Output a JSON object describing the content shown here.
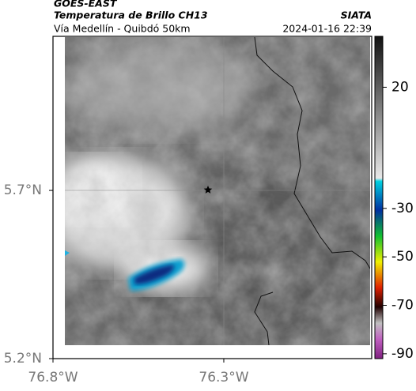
{
  "header": {
    "title": "GOES-EAST",
    "subtitle": "Temperatura de Brillo CH13",
    "route": "Vía Medellín - Quibdó 50km",
    "source": "SIATA",
    "timestamp": "2024-01-16 22:39"
  },
  "map": {
    "xlim": [
      -76.8,
      -75.867
    ],
    "ylim": [
      5.2,
      6.158
    ],
    "xticks": [
      {
        "value": -76.8,
        "label": "76.8°W"
      },
      {
        "value": -76.3,
        "label": "76.3°W"
      }
    ],
    "yticks": [
      {
        "value": 5.7,
        "label": "5.7°N"
      },
      {
        "value": 5.2,
        "label": "5.2°N"
      }
    ],
    "colorbar": {
      "lim": [
        -92,
        41
      ],
      "ticks": [
        20,
        -30,
        -50,
        -70,
        -90
      ]
    }
  }
}
